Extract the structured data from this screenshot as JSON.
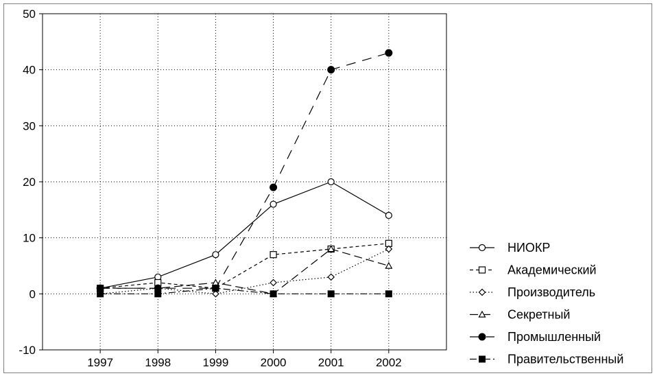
{
  "chart_data": {
    "type": "line",
    "title": "",
    "xlabel": "",
    "ylabel": "",
    "categories": [
      "1997",
      "1998",
      "1999",
      "2000",
      "2001",
      "2002"
    ],
    "ylim": [
      -10,
      50
    ],
    "y_ticks": [
      "-10",
      "0",
      "10",
      "20",
      "30",
      "40",
      "50"
    ],
    "grid": true,
    "legend_position": "right-bottom",
    "series": [
      {
        "name": "НИОКР",
        "marker": "open-circle",
        "dash": "solid",
        "values": [
          1,
          3,
          7,
          16,
          20,
          14
        ]
      },
      {
        "name": "Академический",
        "marker": "open-square",
        "dash": "dashed",
        "values": [
          1,
          2,
          1,
          7,
          8,
          9
        ]
      },
      {
        "name": "Производитель",
        "marker": "open-diamond",
        "dash": "dotted",
        "values": [
          0,
          1,
          0,
          2,
          3,
          8
        ]
      },
      {
        "name": "Секретный",
        "marker": "open-triangle",
        "dash": "long-dash",
        "values": [
          1,
          1,
          2,
          0,
          8,
          5
        ]
      },
      {
        "name": "Промышленный",
        "marker": "filled-circle",
        "dash": "long-dash-gap",
        "values": [
          1,
          1,
          1,
          19,
          40,
          43
        ]
      },
      {
        "name": "Правительственный",
        "marker": "filled-square",
        "dash": "dash-dot",
        "values": [
          0,
          0,
          1,
          0,
          0,
          0
        ]
      }
    ]
  }
}
